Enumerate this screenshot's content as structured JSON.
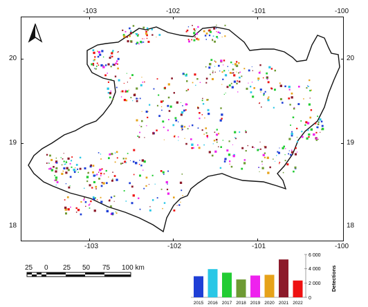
{
  "map": {
    "longitude_ticks": [
      "-103",
      "-102",
      "-101",
      "-100"
    ],
    "latitude_ticks": [
      "20",
      "19",
      "18"
    ],
    "colors": {
      "boundary": "#111111",
      "background": "#ffffff"
    },
    "north_arrow_icon": "north-arrow-icon"
  },
  "scalebar": {
    "labels": [
      "25",
      "0",
      "25",
      "50",
      "75",
      "100 km"
    ]
  },
  "histogram": {
    "y_label": "Detections",
    "y_ticks": [
      "6 000",
      "4 000",
      "2 000",
      "0"
    ]
  },
  "chart_data": {
    "type": "bar",
    "categories": [
      "2015",
      "2016",
      "2017",
      "2018",
      "2019",
      "2020",
      "2021",
      "2022"
    ],
    "values": [
      2950,
      3950,
      3450,
      2500,
      3050,
      3150,
      5300,
      2350
    ],
    "colors": [
      "#1f3fd6",
      "#29c7e6",
      "#22cc33",
      "#6e9a33",
      "#ee22ee",
      "#e6a21a",
      "#8c1a2a",
      "#ee1111"
    ],
    "ylabel": "Detections",
    "ylim": [
      0,
      6000
    ]
  }
}
